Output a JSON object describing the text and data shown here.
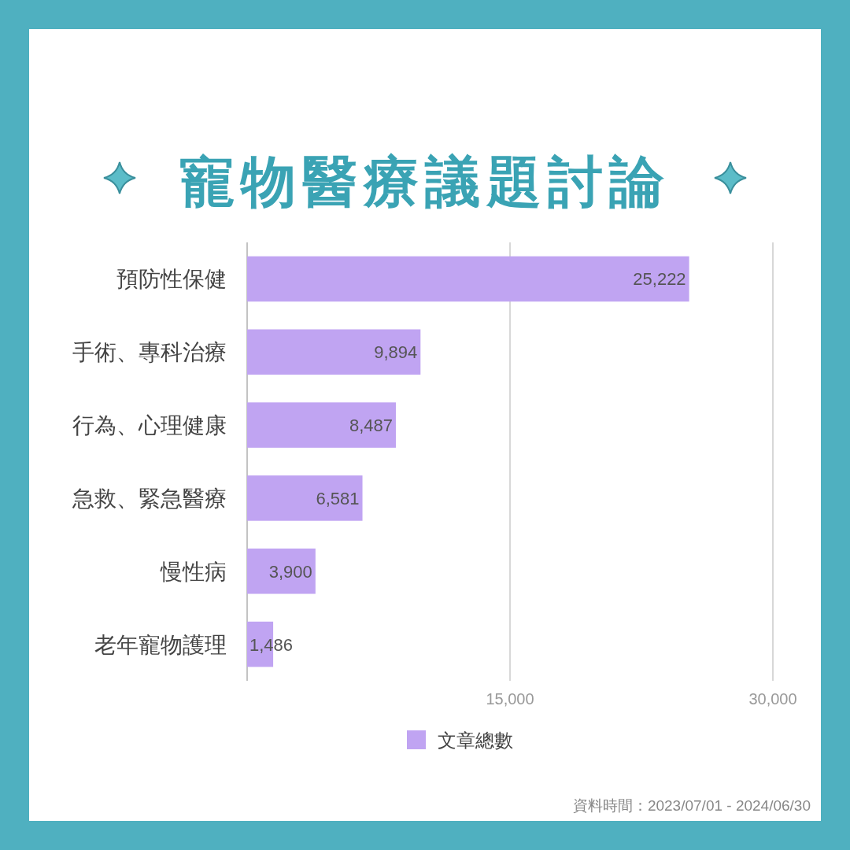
{
  "chart_data": {
    "type": "bar",
    "orientation": "horizontal",
    "title": "寵物醫療議題討論",
    "categories": [
      "預防性保健",
      "手術、專科治療",
      "行為、心理健康",
      "急救、緊急醫療",
      "慢性病",
      "老年寵物護理"
    ],
    "series": [
      {
        "name": "文章總數",
        "color": "#c0a4f2",
        "values": [
          25222,
          9894,
          8487,
          6581,
          3900,
          1486
        ],
        "value_labels": [
          "25,222",
          "9,894",
          "8,487",
          "6,581",
          "3,900",
          "1,486"
        ]
      }
    ],
    "xlim": [
      0,
      30000
    ],
    "xticks": [
      {
        "value": 0,
        "label": null
      },
      {
        "value": 15000,
        "label": "15,000"
      },
      {
        "value": 30000,
        "label": "30,000"
      }
    ],
    "grid": "x",
    "legend": "bottom",
    "annotations": [
      "資料時間：2023/07/01 - 2024/06/30"
    ]
  }
}
